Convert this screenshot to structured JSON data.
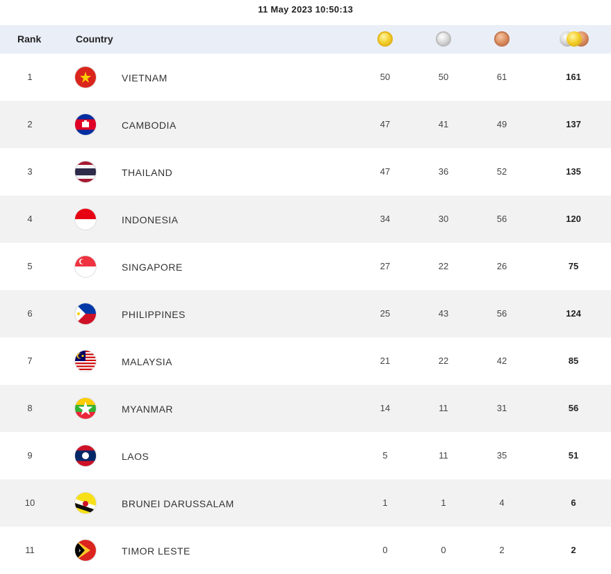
{
  "timestamp": "11 May 2023  10:50:13",
  "header": {
    "rank": "Rank",
    "country": "Country"
  },
  "medal_icons": [
    "gold-medal-icon",
    "silver-medal-icon",
    "bronze-medal-icon",
    "total-medals-icon"
  ],
  "rows": [
    {
      "rank": "1",
      "country": "VIETNAM",
      "flag": "vietnam-flag-icon",
      "gold": "50",
      "silver": "50",
      "bronze": "61",
      "total": "161"
    },
    {
      "rank": "2",
      "country": "CAMBODIA",
      "flag": "cambodia-flag-icon",
      "gold": "47",
      "silver": "41",
      "bronze": "49",
      "total": "137"
    },
    {
      "rank": "3",
      "country": "THAILAND",
      "flag": "thailand-flag-icon",
      "gold": "47",
      "silver": "36",
      "bronze": "52",
      "total": "135"
    },
    {
      "rank": "4",
      "country": "INDONESIA",
      "flag": "indonesia-flag-icon",
      "gold": "34",
      "silver": "30",
      "bronze": "56",
      "total": "120"
    },
    {
      "rank": "5",
      "country": "SINGAPORE",
      "flag": "singapore-flag-icon",
      "gold": "27",
      "silver": "22",
      "bronze": "26",
      "total": "75"
    },
    {
      "rank": "6",
      "country": "PHILIPPINES",
      "flag": "philippines-flag-icon",
      "gold": "25",
      "silver": "43",
      "bronze": "56",
      "total": "124"
    },
    {
      "rank": "7",
      "country": "MALAYSIA",
      "flag": "malaysia-flag-icon",
      "gold": "21",
      "silver": "22",
      "bronze": "42",
      "total": "85"
    },
    {
      "rank": "8",
      "country": "MYANMAR",
      "flag": "myanmar-flag-icon",
      "gold": "14",
      "silver": "11",
      "bronze": "31",
      "total": "56"
    },
    {
      "rank": "9",
      "country": "LAOS",
      "flag": "laos-flag-icon",
      "gold": "5",
      "silver": "11",
      "bronze": "35",
      "total": "51"
    },
    {
      "rank": "10",
      "country": "BRUNEI DARUSSALAM",
      "flag": "brunei-flag-icon",
      "gold": "1",
      "silver": "1",
      "bronze": "4",
      "total": "6"
    },
    {
      "rank": "11",
      "country": "TIMOR LESTE",
      "flag": "timor-leste-flag-icon",
      "gold": "0",
      "silver": "0",
      "bronze": "2",
      "total": "2"
    }
  ]
}
